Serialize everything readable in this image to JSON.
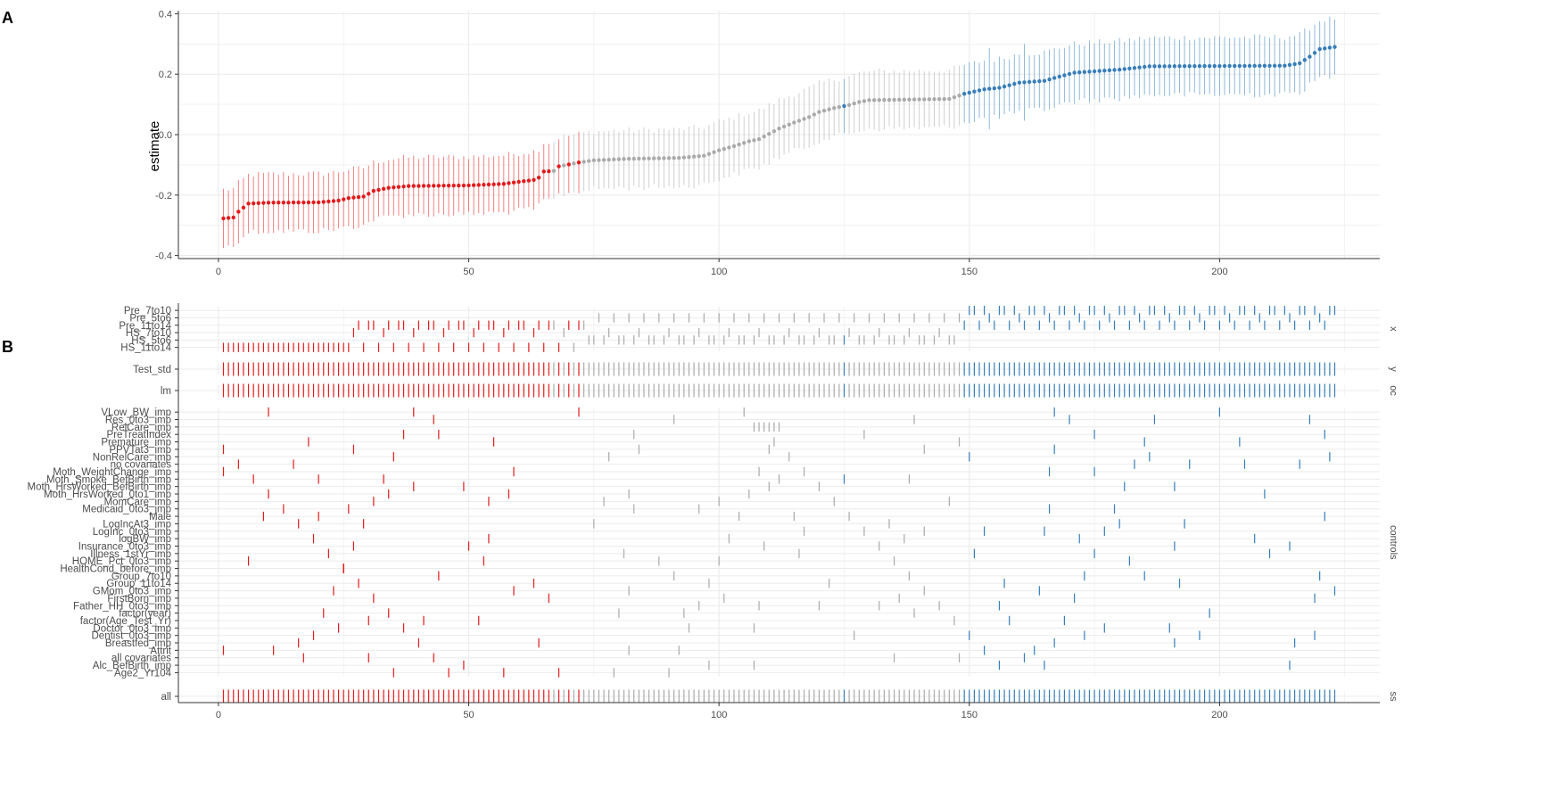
{
  "panels": {
    "a_label": "A",
    "b_label": "B"
  },
  "colors": {
    "negative": "#E41A1C",
    "neutral": "#AAAAAA",
    "positive": "#377EB8",
    "grid": "#EBEBEB",
    "axis": "#333333",
    "text": "#4D4D4D"
  },
  "chart_data": [
    {
      "type": "scatter",
      "description_of_marks": "point estimates with vertical interval ranges, sorted by estimate",
      "ylabel": "estimate",
      "xlabel": "",
      "xlim": [
        -8,
        232
      ],
      "ylim": [
        -0.41,
        0.41
      ],
      "xticks": [
        0,
        50,
        100,
        150,
        200
      ],
      "yticks": [
        -0.4,
        -0.2,
        0.0,
        0.2,
        0.4
      ],
      "ytick_labels": [
        "-0.4",
        "-0.2",
        "0.0",
        "0.2",
        "0.4"
      ],
      "n_specifications": 223,
      "anchors": [
        [
          1,
          -0.277
        ],
        [
          3,
          -0.274
        ],
        [
          4,
          -0.255
        ],
        [
          6,
          -0.228
        ],
        [
          10,
          -0.225
        ],
        [
          20,
          -0.224
        ],
        [
          24,
          -0.218
        ],
        [
          26,
          -0.21
        ],
        [
          29,
          -0.205
        ],
        [
          31,
          -0.186
        ],
        [
          34,
          -0.176
        ],
        [
          38,
          -0.17
        ],
        [
          50,
          -0.168
        ],
        [
          57,
          -0.163
        ],
        [
          60,
          -0.156
        ],
        [
          63,
          -0.15
        ],
        [
          64,
          -0.142
        ],
        [
          65,
          -0.122
        ],
        [
          67,
          -0.12
        ],
        [
          68,
          -0.105
        ],
        [
          72,
          -0.092
        ],
        [
          75,
          -0.085
        ],
        [
          82,
          -0.08
        ],
        [
          92,
          -0.077
        ],
        [
          97,
          -0.07
        ],
        [
          100,
          -0.052
        ],
        [
          103,
          -0.038
        ],
        [
          106,
          -0.022
        ],
        [
          108,
          -0.015
        ],
        [
          112,
          0.02
        ],
        [
          115,
          0.04
        ],
        [
          118,
          0.058
        ],
        [
          120,
          0.075
        ],
        [
          123,
          0.088
        ],
        [
          126,
          0.098
        ],
        [
          128,
          0.108
        ],
        [
          130,
          0.114
        ],
        [
          146,
          0.118
        ],
        [
          149,
          0.135
        ],
        [
          153,
          0.15
        ],
        [
          156,
          0.155
        ],
        [
          160,
          0.172
        ],
        [
          165,
          0.178
        ],
        [
          168,
          0.192
        ],
        [
          171,
          0.205
        ],
        [
          180,
          0.215
        ],
        [
          186,
          0.226
        ],
        [
          213,
          0.228
        ],
        [
          216,
          0.236
        ],
        [
          218,
          0.258
        ],
        [
          220,
          0.283
        ],
        [
          223,
          0.29
        ]
      ],
      "ci_half_width": 0.095,
      "groups": [
        {
          "name": "negative",
          "color": "#E41A1C",
          "x_range": [
            1,
            73
          ]
        },
        {
          "name": "neutral",
          "color": "#AAAAAA",
          "x_range": [
            67,
            148
          ]
        },
        {
          "name": "positive",
          "color": "#377EB8",
          "x_range": [
            149,
            223
          ]
        }
      ]
    },
    {
      "type": "specification_matrix",
      "xticks": [
        0,
        50,
        100,
        150,
        200
      ],
      "facets": [
        {
          "name": "x",
          "strip": "x",
          "rows": [
            "Pre_7to10",
            "Pre_5to6",
            "Pre_11to14",
            "HS_7to10",
            "HS_5to6",
            "HS_11to14"
          ]
        },
        {
          "name": "y",
          "strip": "y",
          "rows": [
            "Test_std"
          ]
        },
        {
          "name": "oc",
          "strip": "oc",
          "rows": [
            "lm"
          ]
        },
        {
          "name": "controls",
          "strip": "controls",
          "rows": [
            "VLow_BW_imp",
            "Res_0to3_imp",
            "RelCare_imp",
            "PreTreatIndex",
            "Premature_imp",
            "PPVTat3_imp",
            "NonRelCare_imp",
            "no covariates",
            "Moth_WeightChange_imp",
            "Moth_Smoke_BefBirth_imp",
            "Moth_HrsWorked_BefBirth_imp",
            "Moth_HrsWorked_0to1_imp",
            "MomCare_imp",
            "Medicaid_0to3_imp",
            "Male",
            "LogIncAt3_imp",
            "LogInc_0to3_imp",
            "logBW_imp",
            "Insurance_0to3_imp",
            "Illness_1stYr_imp",
            "HOME_Pct_0to3_imp",
            "HealthCond_before_imp",
            "Group_7to10",
            "Group_11to14",
            "GMom_0to3_imp",
            "FirstBorn_imp",
            "Father_HH_0to3_imp",
            "factor(year)",
            "factor(Age_Test_Yr)",
            "Doctor_0to3_imp",
            "Dentist_0to3_imp",
            "Breastfed_imp",
            "Attrit",
            "all covariates",
            "Alc_BefBirth_imp",
            "Age2_Yr104"
          ]
        },
        {
          "name": "ss",
          "strip": "ss",
          "rows": [
            "all"
          ]
        }
      ]
    }
  ]
}
